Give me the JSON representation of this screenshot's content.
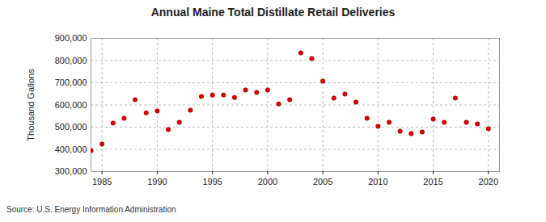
{
  "chart_data": {
    "type": "scatter",
    "title": "Annual Maine Total Distillate Retail Deliveries",
    "y_label": "Thousand Gallons",
    "caption": "Source: U.S. Energy Information Administration",
    "x": [
      1984,
      1985,
      1986,
      1987,
      1988,
      1989,
      1990,
      1991,
      1992,
      1993,
      1994,
      1995,
      1996,
      1997,
      1998,
      1999,
      2000,
      2001,
      2002,
      2003,
      2004,
      2005,
      2006,
      2007,
      2008,
      2009,
      2010,
      2011,
      2012,
      2013,
      2014,
      2015,
      2016,
      2017,
      2018,
      2019,
      2020
    ],
    "values": [
      395000,
      424000,
      518000,
      540000,
      624000,
      565000,
      573000,
      489000,
      522000,
      576000,
      638000,
      645000,
      645000,
      634000,
      667000,
      656000,
      667000,
      605000,
      624000,
      835000,
      809000,
      707000,
      631000,
      649000,
      613000,
      540000,
      504000,
      522000,
      482000,
      471000,
      478000,
      536000,
      522000,
      631000,
      522000,
      515000,
      493000
    ],
    "color": "#cc0000",
    "marker": "circle",
    "xlim": [
      1984,
      2021
    ],
    "xticks": [
      1985,
      1990,
      1995,
      2000,
      2005,
      2010,
      2015,
      2020
    ],
    "ylim": [
      300000,
      900000
    ],
    "yticks": [
      {
        "value": 300000,
        "label": "300,000"
      },
      {
        "value": 400000,
        "label": "400,000"
      },
      {
        "value": 500000,
        "label": "500,000"
      },
      {
        "value": 600000,
        "label": "600,000"
      },
      {
        "value": 700000,
        "label": "700,000"
      },
      {
        "value": 800000,
        "label": "800,000"
      },
      {
        "value": 900000,
        "label": "900,000"
      }
    ],
    "grid": true
  }
}
